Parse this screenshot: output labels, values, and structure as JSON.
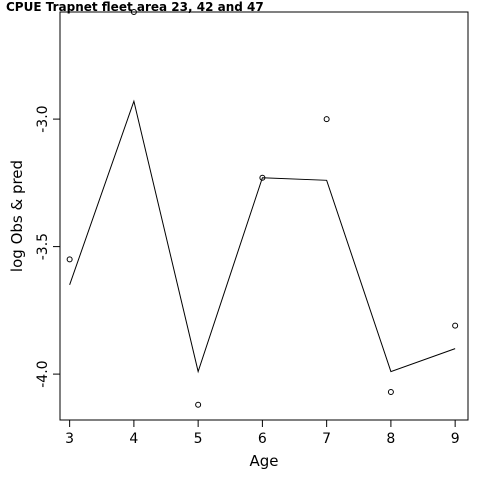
{
  "chart_data": {
    "type": "line",
    "title": "CPUE Trapnet fleet area 23, 42 and 47",
    "xlabel": "Age",
    "ylabel": "log Obs & pred",
    "x": [
      3,
      4,
      5,
      6,
      7,
      8,
      9
    ],
    "xlim": [
      2.85,
      9.2
    ],
    "ylim": [
      -4.18,
      -2.58
    ],
    "xticks": [
      "3",
      "4",
      "5",
      "6",
      "7",
      "8",
      "9"
    ],
    "yticks": [
      {
        "value": -3.0,
        "label": "-3.0"
      },
      {
        "value": -3.5,
        "label": "-3.5"
      },
      {
        "value": -4.0,
        "label": "-4.0"
      }
    ],
    "series": [
      {
        "style": "points",
        "values": [
          -3.55,
          -2.58,
          -4.12,
          -3.23,
          -3.0,
          -4.07,
          -3.81
        ]
      },
      {
        "style": "line",
        "values": [
          -3.65,
          -2.93,
          -3.99,
          -3.23,
          -3.24,
          -3.99,
          -3.9
        ]
      }
    ],
    "grid": false,
    "legend": "none",
    "colors": {
      "line": "#000000",
      "points": "#000000",
      "axes": "#000000"
    }
  }
}
